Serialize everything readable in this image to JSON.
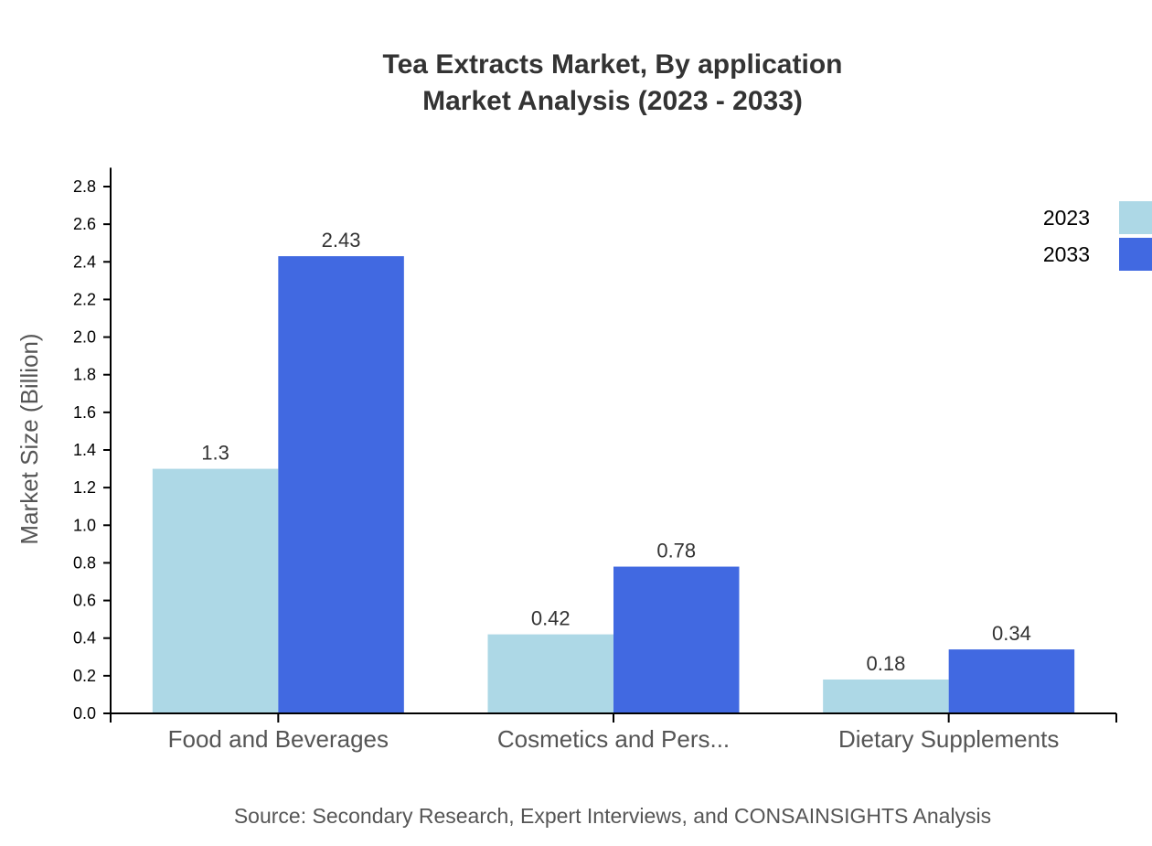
{
  "chart_data": {
    "type": "bar",
    "title": [
      "Tea Extracts Market, By application",
      "Market Analysis (2023 - 2033)"
    ],
    "xlabel": "",
    "ylabel": "Market Size (Billion)",
    "ylim": [
      0,
      2.9
    ],
    "yticks": [
      "0.0",
      "0.2",
      "0.4",
      "0.6",
      "0.8",
      "1.0",
      "1.2",
      "1.4",
      "1.6",
      "1.8",
      "2.0",
      "2.2",
      "2.4",
      "2.6",
      "2.8"
    ],
    "categories": [
      "Food and Beverages",
      "Cosmetics and Pers...",
      "Dietary Supplements"
    ],
    "series": [
      {
        "name": "2023",
        "color": "#ADD8E6",
        "values": [
          1.3,
          0.42,
          0.18
        ],
        "labels": [
          "1.3",
          "0.42",
          "0.18"
        ]
      },
      {
        "name": "2033",
        "color": "#4169E1",
        "values": [
          2.43,
          0.78,
          0.34
        ],
        "labels": [
          "2.43",
          "0.78",
          "0.34"
        ]
      }
    ],
    "grid": false,
    "legend": "top-right",
    "source": "Source: Secondary Research, Expert Interviews, and CONSAINSIGHTS Analysis"
  }
}
